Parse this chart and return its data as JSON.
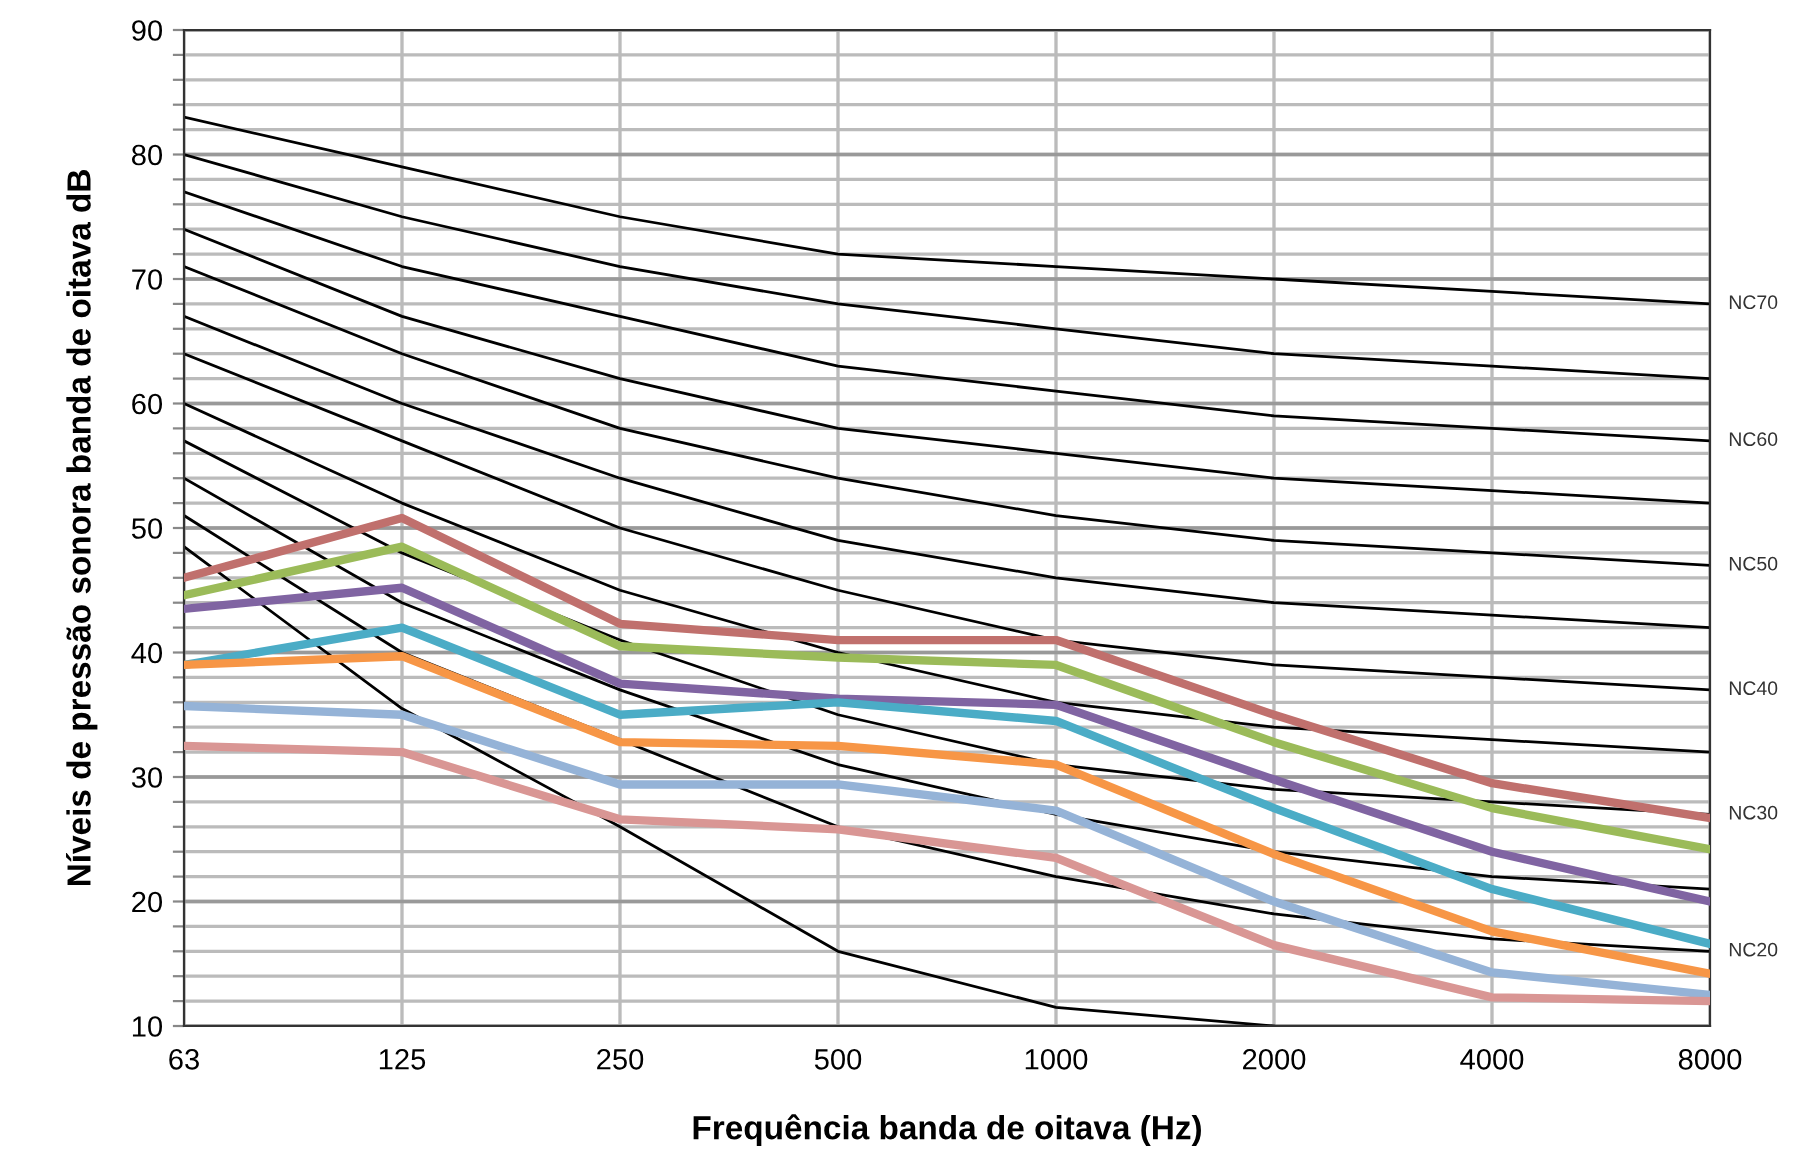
{
  "chart_data": {
    "type": "line",
    "xlabel": "Frequência banda de oitava (Hz)",
    "ylabel": "Níveis de pressão sonora banda de oitava dB",
    "categories": [
      "63",
      "125",
      "250",
      "500",
      "1000",
      "2000",
      "4000",
      "8000"
    ],
    "ylim": [
      10,
      90
    ],
    "yticks": [
      10,
      {
        "value": 12,
        "label": null
      },
      {
        "value": 14,
        "label": null
      },
      {
        "value": 16,
        "label": null
      },
      {
        "value": 18,
        "label": null
      },
      20,
      {
        "value": 22,
        "label": null
      },
      {
        "value": 24,
        "label": null
      },
      {
        "value": 26,
        "label": null
      },
      {
        "value": 28,
        "label": null
      },
      30,
      {
        "value": 32,
        "label": null
      },
      {
        "value": 34,
        "label": null
      },
      {
        "value": 36,
        "label": null
      },
      {
        "value": 38,
        "label": null
      },
      40,
      {
        "value": 42,
        "label": null
      },
      {
        "value": 44,
        "label": null
      },
      {
        "value": 46,
        "label": null
      },
      {
        "value": 48,
        "label": null
      },
      50,
      {
        "value": 52,
        "label": null
      },
      {
        "value": 54,
        "label": null
      },
      {
        "value": 56,
        "label": null
      },
      {
        "value": 58,
        "label": null
      },
      60,
      {
        "value": 62,
        "label": null
      },
      {
        "value": 64,
        "label": null
      },
      {
        "value": 66,
        "label": null
      },
      {
        "value": 68,
        "label": null
      },
      70,
      {
        "value": 72,
        "label": null
      },
      {
        "value": 74,
        "label": null
      },
      {
        "value": 76,
        "label": null
      },
      {
        "value": 78,
        "label": null
      },
      80,
      {
        "value": 82,
        "label": null
      },
      {
        "value": 84,
        "label": null
      },
      {
        "value": 86,
        "label": null
      },
      {
        "value": 88,
        "label": null
      },
      90
    ],
    "grid": true,
    "legend": false,
    "marker": "none",
    "line_style": "solid",
    "series": [
      {
        "name": "NC70",
        "color": "#000000",
        "values": [
          83,
          79,
          75,
          72,
          71,
          70,
          69,
          68
        ]
      },
      {
        "color": "#000000",
        "values": [
          80,
          75,
          71,
          68,
          66,
          64,
          63,
          62
        ]
      },
      {
        "name": "NC60",
        "color": "#000000",
        "values": [
          77,
          71,
          67,
          63,
          61,
          59,
          58,
          57
        ]
      },
      {
        "color": "#000000",
        "values": [
          74,
          67,
          62,
          58,
          56,
          54,
          53,
          52
        ]
      },
      {
        "name": "NC50",
        "color": "#000000",
        "values": [
          71,
          64,
          58,
          54,
          51,
          49,
          48,
          47
        ]
      },
      {
        "color": "#000000",
        "values": [
          67,
          60,
          54,
          49,
          46,
          44,
          43,
          42
        ]
      },
      {
        "name": "NC40",
        "color": "#000000",
        "values": [
          64,
          57,
          50,
          45,
          41,
          39,
          38,
          37
        ]
      },
      {
        "color": "#000000",
        "values": [
          60,
          52,
          45,
          40,
          36,
          34,
          33,
          32
        ]
      },
      {
        "name": "NC30",
        "color": "#000000",
        "values": [
          57,
          48,
          41,
          35,
          31,
          29,
          28,
          27
        ]
      },
      {
        "color": "#000000",
        "values": [
          54,
          44,
          37,
          31,
          27,
          24,
          22,
          21
        ]
      },
      {
        "name": "NC20",
        "color": "#000000",
        "values": [
          51,
          40,
          33,
          26,
          22,
          19,
          17,
          16
        ]
      },
      {
        "color": "#000000",
        "values": [
          48.5,
          35.5,
          26,
          16,
          11.5,
          10,
          null,
          null
        ]
      },
      {
        "color": "#c0706d",
        "values": [
          46,
          50.8,
          42.3,
          41,
          41,
          35,
          29.5,
          26.7
        ]
      },
      {
        "color": "#9bbb59",
        "values": [
          44.6,
          48.5,
          40.5,
          39.6,
          39,
          32.8,
          27.5,
          24.2
        ]
      },
      {
        "color": "#8064a2",
        "values": [
          43.5,
          45.2,
          37.5,
          36.3,
          35.8,
          29.8,
          24,
          20
        ]
      },
      {
        "color": "#4bacc6",
        "values": [
          39,
          42,
          35,
          36,
          34.5,
          27.5,
          21,
          16.6
        ]
      },
      {
        "color": "#f79646",
        "values": [
          39,
          39.7,
          32.8,
          32.5,
          31,
          23.8,
          17.6,
          14.2
        ]
      },
      {
        "color": "#95b3d7",
        "values": [
          35.7,
          35,
          29.4,
          29.4,
          27.3,
          20,
          14.3,
          12.5
        ]
      },
      {
        "color": "#d99694",
        "values": [
          32.5,
          32,
          26.6,
          25.8,
          23.5,
          16.5,
          12.3,
          12
        ]
      }
    ]
  }
}
